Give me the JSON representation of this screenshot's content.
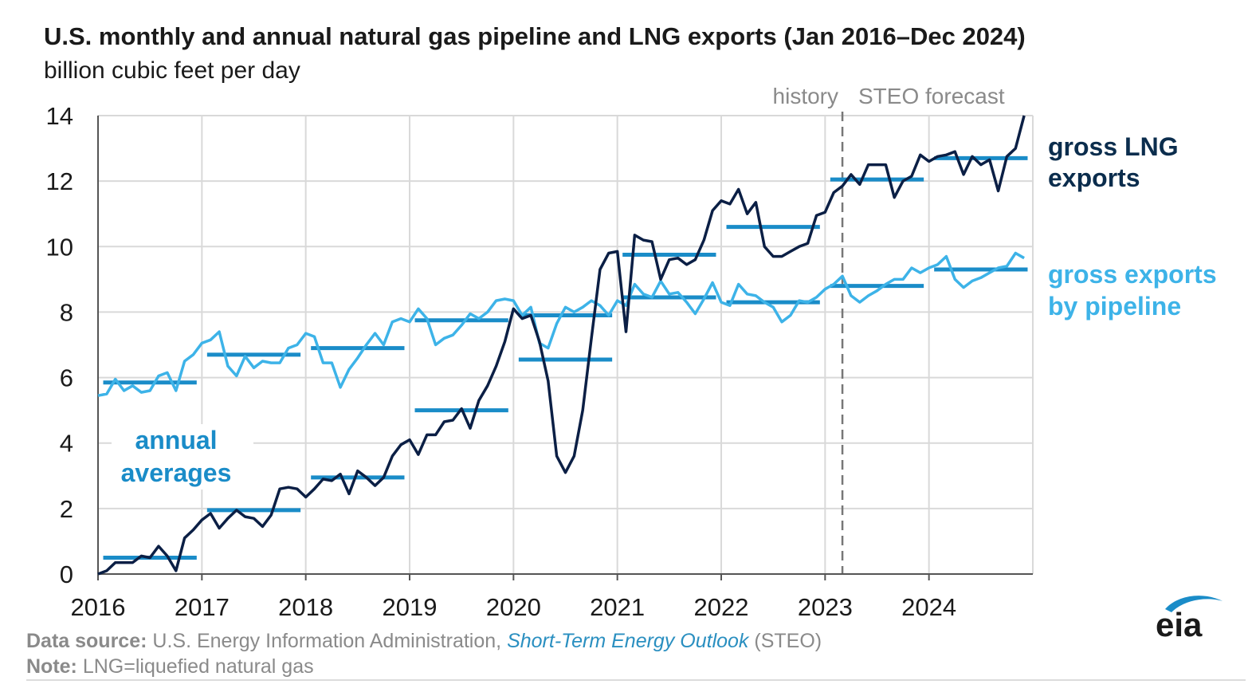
{
  "header": {
    "title": "U.S. monthly and annual natural gas pipeline and LNG exports (Jan 2016–Dec 2024)",
    "subtitle": "billion cubic feet per day"
  },
  "footer": {
    "source_label": "Data source:",
    "source_text": "U.S. Energy Information Administration,",
    "source_publication": "Short-Term Energy Outlook",
    "source_suffix": "(STEO)",
    "note_label": "Note:",
    "note_text": "LNG=liquefied natural gas"
  },
  "logo": {
    "text": "eia",
    "icon": "eia-logo-icon"
  },
  "chart_data": {
    "type": "line",
    "title": "U.S. monthly and annual natural gas pipeline and LNG exports (Jan 2016–Dec 2024)",
    "ylabel": "billion cubic feet per day",
    "xlabel": "",
    "x_range": [
      "2016-01",
      "2024-12"
    ],
    "ylim": [
      0,
      14
    ],
    "yticks": [
      0,
      2,
      4,
      6,
      8,
      10,
      12,
      14
    ],
    "xticks": [
      "2016",
      "2017",
      "2018",
      "2019",
      "2020",
      "2021",
      "2022",
      "2023",
      "2024"
    ],
    "grid": true,
    "history_label": "history",
    "forecast_label": "STEO forecast",
    "forecast_start": "2023-03",
    "annual_label": "annual averages",
    "colors": {
      "lng": "#0b1f45",
      "pipeline": "#3db3e8",
      "annual": "#1a8cc8",
      "grid": "#d9d9d9",
      "forecast_line": "#777777"
    },
    "series": [
      {
        "name": "gross LNG exports",
        "start": "2016-01",
        "values": [
          0.0,
          0.1,
          0.35,
          0.35,
          0.35,
          0.55,
          0.5,
          0.85,
          0.55,
          0.1,
          1.1,
          1.35,
          1.65,
          1.85,
          1.4,
          1.7,
          1.95,
          1.75,
          1.7,
          1.45,
          1.8,
          2.6,
          2.65,
          2.6,
          2.35,
          2.6,
          2.9,
          2.85,
          3.05,
          2.45,
          3.15,
          2.95,
          2.7,
          2.95,
          3.6,
          3.95,
          4.1,
          3.65,
          4.25,
          4.25,
          4.65,
          4.7,
          5.05,
          4.45,
          5.3,
          5.75,
          6.35,
          7.1,
          8.1,
          7.8,
          7.9,
          7.1,
          5.9,
          3.6,
          3.1,
          3.6,
          5.0,
          7.2,
          9.3,
          9.8,
          9.85,
          7.4,
          10.35,
          10.2,
          10.15,
          9.0,
          9.6,
          9.65,
          9.45,
          9.6,
          10.2,
          11.1,
          11.4,
          11.3,
          11.75,
          11.0,
          11.35,
          10.0,
          9.7,
          9.7,
          9.85,
          10.0,
          10.1,
          10.95,
          11.05,
          11.65,
          11.85,
          12.2,
          11.9,
          12.5,
          12.5,
          12.5,
          11.5,
          12.0,
          12.15,
          12.8,
          12.6,
          12.75,
          12.8,
          12.9,
          12.2,
          12.75,
          12.5,
          12.65,
          11.7,
          12.75,
          13.0,
          14.0
        ]
      },
      {
        "name": "gross exports by pipeline",
        "start": "2016-01",
        "values": [
          5.45,
          5.5,
          5.95,
          5.6,
          5.75,
          5.55,
          5.6,
          6.05,
          6.15,
          5.6,
          6.5,
          6.7,
          7.05,
          7.15,
          7.4,
          6.35,
          6.05,
          6.65,
          6.3,
          6.5,
          6.45,
          6.45,
          6.9,
          7.0,
          7.35,
          7.25,
          6.45,
          6.45,
          5.7,
          6.25,
          6.6,
          7.0,
          7.35,
          7.0,
          7.7,
          7.8,
          7.7,
          8.1,
          7.8,
          7.0,
          7.2,
          7.3,
          7.6,
          7.95,
          7.8,
          8.0,
          8.35,
          8.4,
          8.35,
          7.9,
          8.15,
          7.05,
          6.9,
          7.65,
          8.15,
          8.0,
          8.15,
          8.35,
          8.2,
          7.9,
          8.35,
          8.2,
          8.85,
          8.55,
          8.45,
          8.95,
          8.55,
          8.6,
          8.3,
          7.95,
          8.4,
          8.9,
          8.3,
          8.2,
          8.85,
          8.55,
          8.5,
          8.3,
          8.15,
          7.7,
          7.9,
          8.35,
          8.3,
          8.45,
          8.7,
          8.85,
          9.1,
          8.5,
          8.3,
          8.5,
          8.65,
          8.85,
          9.0,
          9.0,
          9.35,
          9.2,
          9.35,
          9.45,
          9.7,
          9.0,
          8.75,
          8.95,
          9.05,
          9.2,
          9.35,
          9.4,
          9.8,
          9.65
        ]
      }
    ],
    "annual_averages": [
      {
        "year": "2016",
        "lng": 0.5,
        "pipeline": 5.85
      },
      {
        "year": "2017",
        "lng": 1.95,
        "pipeline": 6.7
      },
      {
        "year": "2018",
        "lng": 2.95,
        "pipeline": 6.9
      },
      {
        "year": "2019",
        "lng": 5.0,
        "pipeline": 7.75
      },
      {
        "year": "2020",
        "lng": 6.55,
        "pipeline": 7.9
      },
      {
        "year": "2021",
        "lng": 9.75,
        "pipeline": 8.45
      },
      {
        "year": "2022",
        "lng": 10.6,
        "pipeline": 8.3
      },
      {
        "year": "2023",
        "lng": 12.05,
        "pipeline": 8.8
      },
      {
        "year": "2024",
        "lng": 12.7,
        "pipeline": 9.3
      }
    ],
    "series_labels": {
      "lng_line1": "gross LNG",
      "lng_line2": "exports",
      "pipe_line1": "gross exports",
      "pipe_line2": "by pipeline",
      "annual_line1": "annual",
      "annual_line2": "averages"
    }
  }
}
